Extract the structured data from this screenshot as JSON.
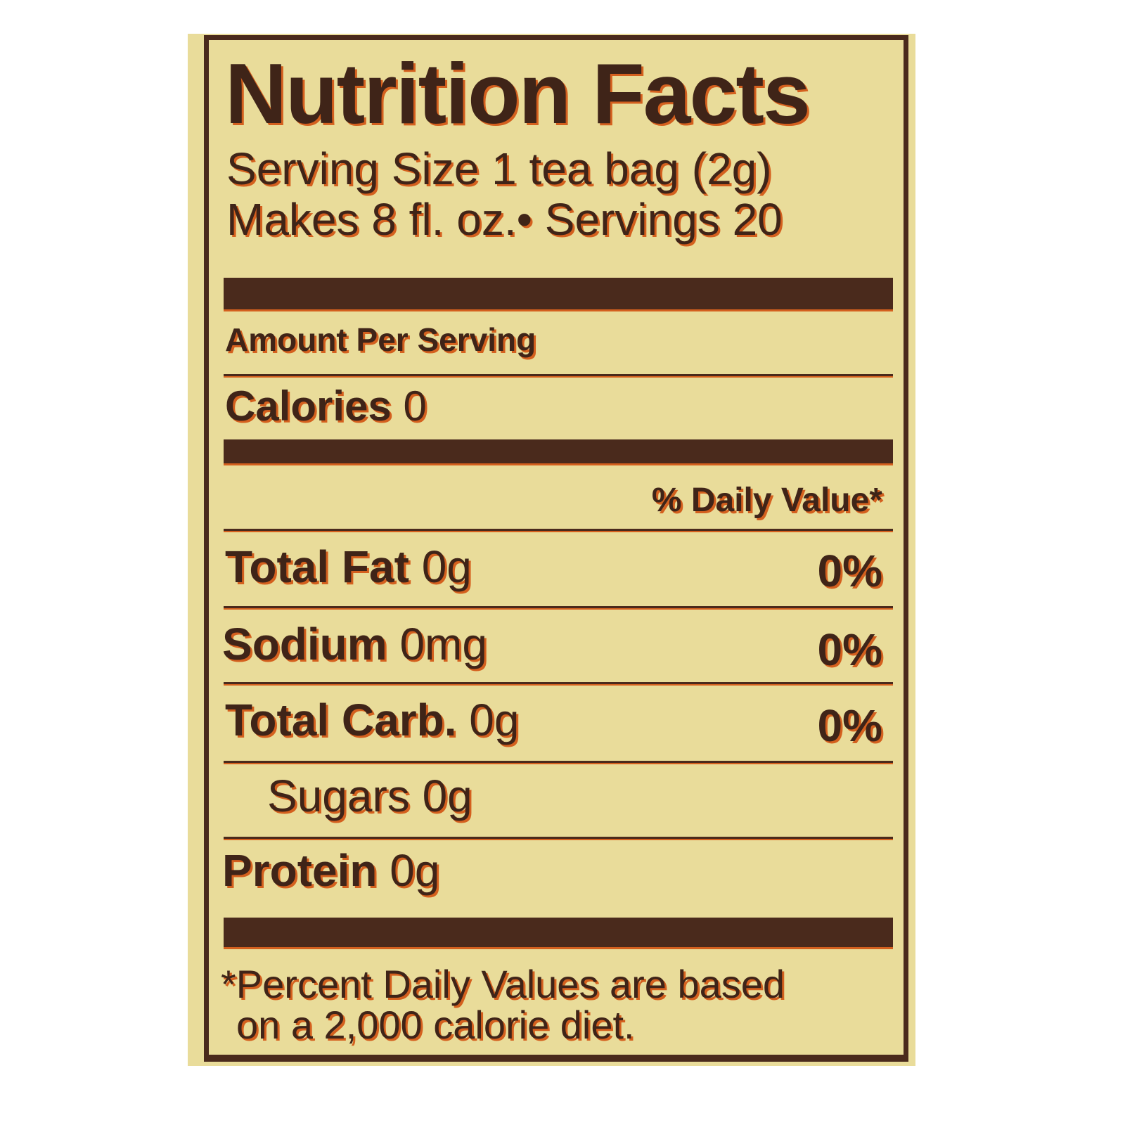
{
  "title": "Nutrition Facts",
  "serving_size": "Serving Size 1 tea bag (2g)",
  "makes": "Makes 8 fl. oz.• Servings 20",
  "amount_per_serving": "Amount Per Serving",
  "calories": {
    "label": "Calories",
    "value": "0"
  },
  "daily_value_header": "% Daily Value*",
  "nutrients": [
    {
      "label": "Total Fat",
      "amount": "0g",
      "dv": "0%"
    },
    {
      "label": "Sodium",
      "amount": "0mg",
      "dv": "0%"
    },
    {
      "label": "Total Carb.",
      "amount": "0g",
      "dv": "0%"
    },
    {
      "label": "Sugars",
      "amount": "0g",
      "dv": ""
    },
    {
      "label": "Protein",
      "amount": "0g",
      "dv": ""
    }
  ],
  "footnote": [
    "*Percent Daily Values are based",
    "on a 2,000 calorie diet."
  ],
  "colors": {
    "background": "#e9dc9a",
    "ink": "#3f2418",
    "shadow": "#d4601e"
  }
}
